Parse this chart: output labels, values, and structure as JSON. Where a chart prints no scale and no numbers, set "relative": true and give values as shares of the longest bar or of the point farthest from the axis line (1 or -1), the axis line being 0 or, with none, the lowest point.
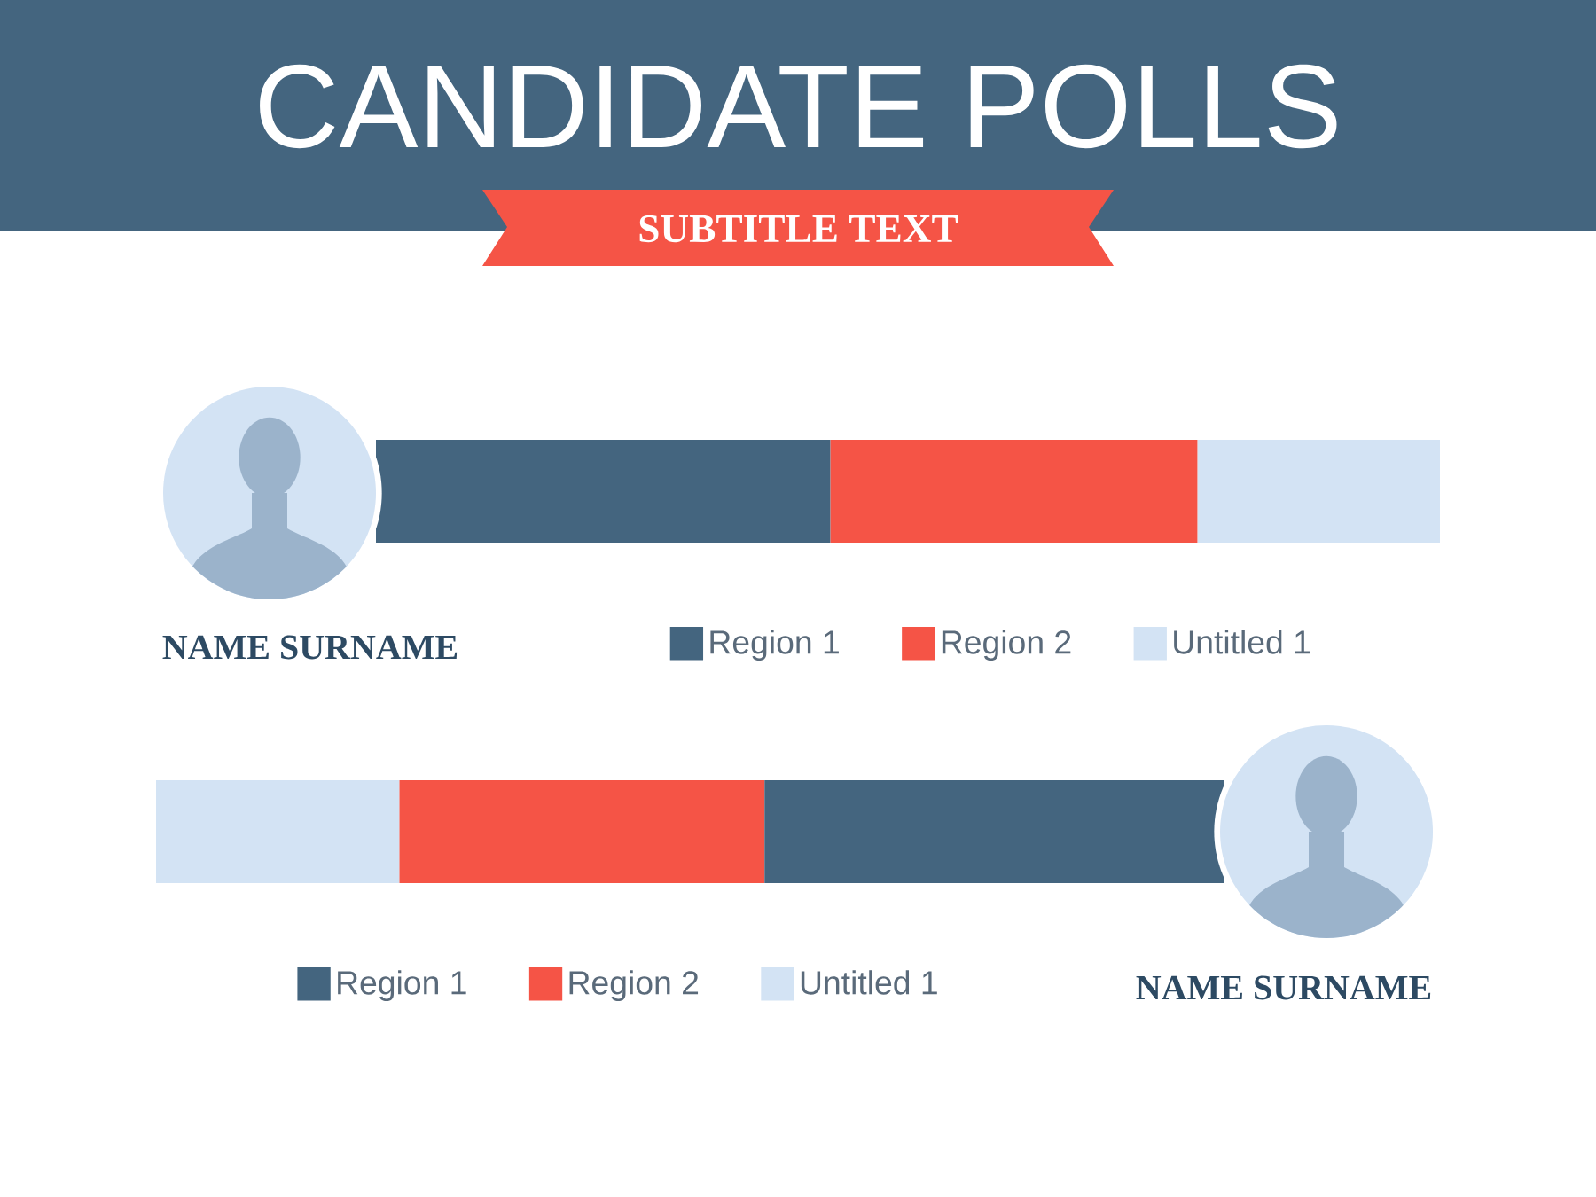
{
  "chart_data": [
    {
      "type": "bar",
      "orientation": "horizontal",
      "stacked": true,
      "relative": true,
      "title": "CANDIDATE POLLS",
      "subtitle": "SUBTITLE TEXT",
      "categories": [
        null
      ],
      "series": [
        {
          "name": "Region 1",
          "color": "#44657f",
          "values": [
            0.427
          ]
        },
        {
          "name": "Region 2",
          "color": "#f55446",
          "values": [
            0.345
          ]
        },
        {
          "name": "Untitled 1",
          "color": "#d3e3f4",
          "values": [
            0.228
          ]
        }
      ],
      "legend": "bottom",
      "annotations": [
        "NAME SURNAME"
      ]
    },
    {
      "type": "bar",
      "orientation": "horizontal",
      "stacked": true,
      "relative": true,
      "categories": [
        null
      ],
      "series": [
        {
          "name": "Region 1",
          "color": "#44657f",
          "values": [
            0.43
          ]
        },
        {
          "name": "Region 2",
          "color": "#f55446",
          "values": [
            0.342
          ]
        },
        {
          "name": "Untitled 1",
          "color": "#d3e3f4",
          "values": [
            0.228
          ]
        }
      ],
      "legend": "bottom",
      "annotations": [
        "NAME SURNAME"
      ]
    }
  ]
}
